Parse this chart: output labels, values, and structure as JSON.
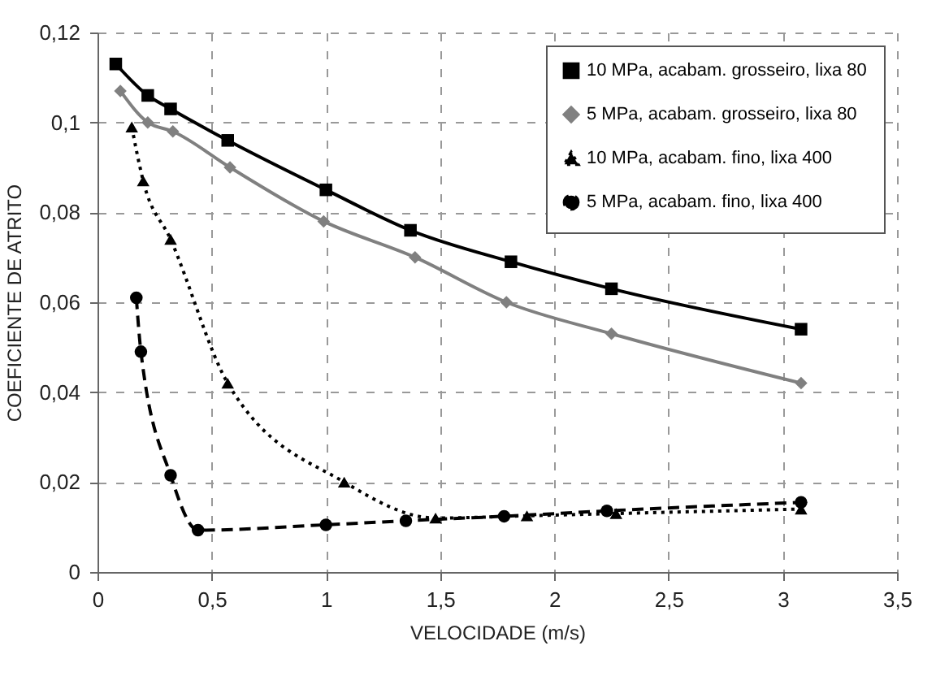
{
  "chart_data": {
    "type": "line",
    "xlabel": "VELOCIDADE (m/s)",
    "ylabel": "COEFICIENTE DE ATRITO",
    "xlim": [
      0,
      3.5
    ],
    "xticks": [
      0,
      {
        "value": 0.5,
        "label": "0,5"
      },
      1,
      {
        "value": 1.5,
        "label": "1,5"
      },
      2,
      {
        "value": 2.5,
        "label": "2,5"
      },
      3,
      {
        "value": 3.5,
        "label": "3,5"
      }
    ],
    "ylim": [
      0,
      0.12
    ],
    "yticks": [
      0,
      {
        "value": 0.02,
        "label": "0,02"
      },
      {
        "value": 0.04,
        "label": "0,04"
      },
      {
        "value": 0.06,
        "label": "0,06"
      },
      {
        "value": 0.08,
        "label": "0,08"
      },
      {
        "value": 0.1,
        "label": "0,1"
      },
      {
        "value": 0.12,
        "label": "0,12"
      }
    ],
    "grid": true,
    "legend": "top right",
    "series": [
      {
        "name": "10 MPa, acabam. grosseiro, lixa 80",
        "color": "#000000",
        "marker": "square",
        "line_style": "solid",
        "x": [
          0.08,
          0.22,
          0.32,
          0.57,
          1.0,
          1.37,
          1.81,
          2.25,
          3.08
        ],
        "values": [
          0.113,
          0.106,
          0.103,
          0.096,
          0.085,
          0.076,
          0.069,
          0.063,
          0.054
        ]
      },
      {
        "name": "5 MPa, acabam. grosseiro, lixa 80",
        "color": "#808080",
        "marker": "diamond",
        "line_style": "solid",
        "x": [
          0.1,
          0.22,
          0.33,
          0.58,
          0.99,
          1.39,
          1.79,
          2.25,
          3.08
        ],
        "values": [
          0.107,
          0.1,
          0.098,
          0.09,
          0.078,
          0.07,
          0.06,
          0.053,
          0.042
        ]
      },
      {
        "name": "10 MPa, acabam. fino, lixa 400",
        "color": "#000000",
        "marker": "triangle",
        "line_style": "dotted",
        "x": [
          0.15,
          0.2,
          0.32,
          0.57,
          1.08,
          1.48,
          1.88,
          2.27,
          3.08
        ],
        "values": [
          0.099,
          0.087,
          0.074,
          0.042,
          0.02,
          0.012,
          0.0125,
          0.013,
          0.014
        ]
      },
      {
        "name": "5 MPa, acabam. fino, lixa 400",
        "color": "#000000",
        "marker": "circle",
        "line_style": "dashed",
        "x": [
          0.17,
          0.19,
          0.32,
          0.44,
          1.0,
          1.35,
          1.78,
          2.23,
          3.08
        ],
        "values": [
          0.061,
          0.049,
          0.0215,
          0.0093,
          0.0105,
          0.0114,
          0.0124,
          0.0136,
          0.0155
        ]
      }
    ]
  }
}
